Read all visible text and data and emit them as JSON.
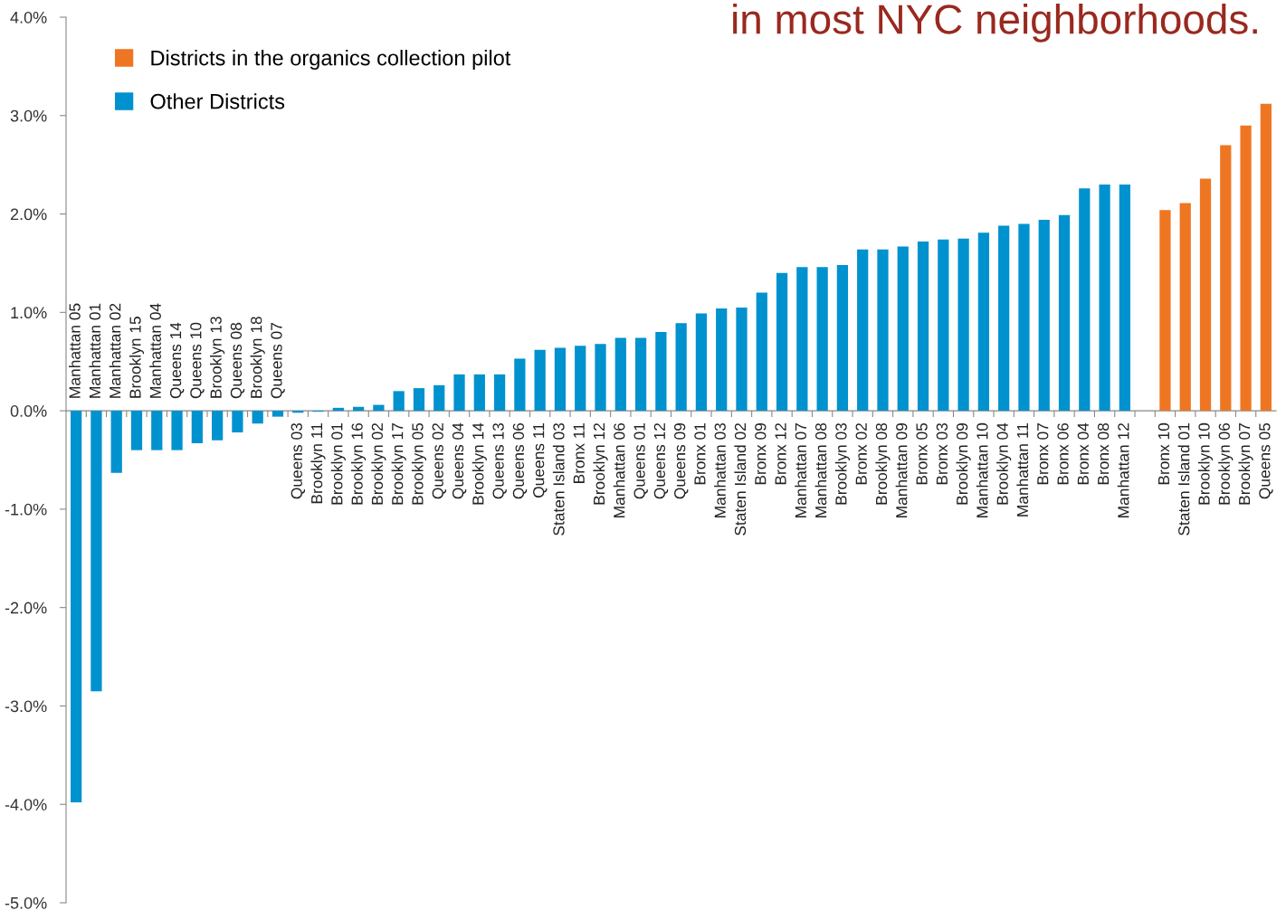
{
  "chart_data": {
    "type": "bar",
    "title": "in most NYC neighborhoods.",
    "categories": [
      "Manhattan 05",
      "Manhattan 01",
      "Manhattan 02",
      "Brooklyn 15",
      "Manhattan 04",
      "Queens 14",
      "Queens 10",
      "Brooklyn 13",
      "Queens 08",
      "Brooklyn 18",
      "Queens 07",
      "Queens 03",
      "Brooklyn 11",
      "Brooklyn 01",
      "Brooklyn 16",
      "Brooklyn 02",
      "Brooklyn 17",
      "Brooklyn 05",
      "Queens 02",
      "Queens 04",
      "Brooklyn 14",
      "Queens 13",
      "Queens 06",
      "Queens 11",
      "Staten Island 03",
      "Bronx 11",
      "Brooklyn 12",
      "Manhattan 06",
      "Queens 01",
      "Queens 12",
      "Queens 09",
      "Bronx 01",
      "Manhattan 03",
      "Staten Island 02",
      "Bronx 09",
      "Bronx 12",
      "Manhattan 07",
      "Manhattan 08",
      "Brooklyn 03",
      "Bronx 02",
      "Brooklyn 08",
      "Manhattan 09",
      "Bronx 05",
      "Bronx 03",
      "Brooklyn 09",
      "Manhattan 10",
      "Brooklyn 04",
      "Manhattan 11",
      "Bronx 07",
      "Bronx 06",
      "Bronx 04",
      "Bronx 08",
      "Manhattan 12",
      null,
      "Bronx 10",
      "Staten Island 01",
      "Brooklyn 10",
      "Brooklyn 06",
      "Brooklyn 07",
      "Queens 05"
    ],
    "series": [
      {
        "name": "Districts in the organics collection pilot",
        "color": "#ee7623",
        "values": [
          null,
          null,
          null,
          null,
          null,
          null,
          null,
          null,
          null,
          null,
          null,
          null,
          null,
          null,
          null,
          null,
          null,
          null,
          null,
          null,
          null,
          null,
          null,
          null,
          null,
          null,
          null,
          null,
          null,
          null,
          null,
          null,
          null,
          null,
          null,
          null,
          null,
          null,
          null,
          null,
          null,
          null,
          null,
          null,
          null,
          null,
          null,
          null,
          null,
          null,
          null,
          null,
          null,
          null,
          2.04,
          2.11,
          2.36,
          2.7,
          2.9,
          3.12
        ]
      },
      {
        "name": "Other Districts",
        "color": "#0092cf",
        "values": [
          -3.98,
          -2.85,
          -0.63,
          -0.4,
          -0.4,
          -0.4,
          -0.33,
          -0.3,
          -0.22,
          -0.13,
          -0.06,
          -0.02,
          -0.01,
          0.03,
          0.04,
          0.06,
          0.2,
          0.23,
          0.26,
          0.37,
          0.37,
          0.37,
          0.53,
          0.62,
          0.64,
          0.66,
          0.68,
          0.74,
          0.74,
          0.8,
          0.89,
          0.99,
          1.04,
          1.05,
          1.2,
          1.4,
          1.46,
          1.46,
          1.48,
          1.64,
          1.64,
          1.67,
          1.72,
          1.74,
          1.75,
          1.81,
          1.88,
          1.9,
          1.94,
          1.99,
          2.26,
          2.3,
          2.3,
          null,
          null,
          null,
          null,
          null,
          null,
          null
        ]
      }
    ],
    "ylim": [
      -5,
      4
    ],
    "yticks": [
      {
        "value": -5,
        "label": "-5.0%"
      },
      {
        "value": -4,
        "label": "-4.0%"
      },
      {
        "value": -3,
        "label": "-3.0%"
      },
      {
        "value": -2,
        "label": "-2.0%"
      },
      {
        "value": -1,
        "label": "-1.0%"
      },
      {
        "value": 0,
        "label": "0.0%"
      },
      {
        "value": 1,
        "label": "1.0%"
      },
      {
        "value": 2,
        "label": "2.0%"
      },
      {
        "value": 3,
        "label": "3.0%"
      },
      {
        "value": 4,
        "label": "4.0%"
      }
    ],
    "grid": false,
    "legend": "top left"
  }
}
